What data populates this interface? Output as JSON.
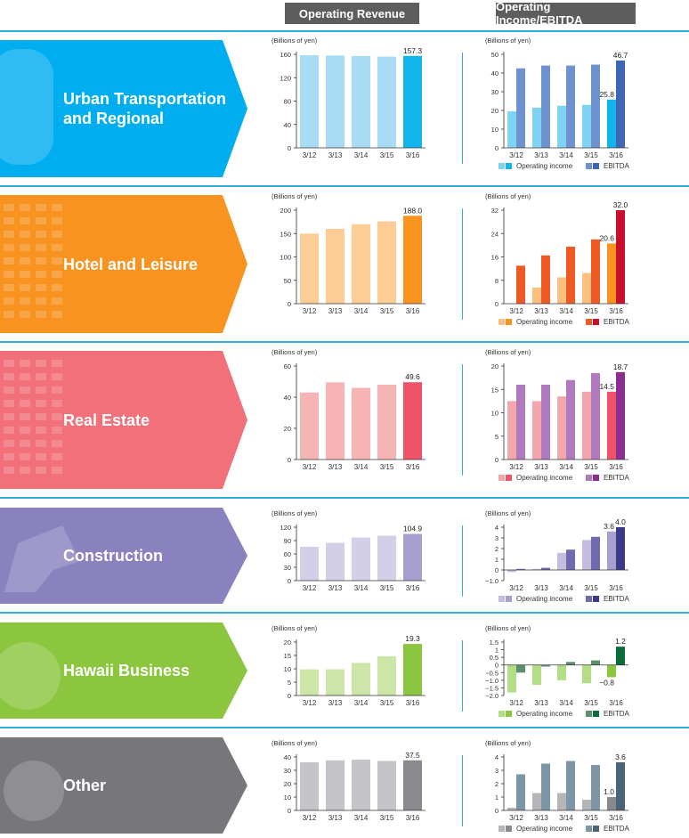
{
  "headers": {
    "revenue": "Operating Revenue",
    "income": "Operating Income/EBITDA"
  },
  "unit_label": "(Billions of yen)",
  "categories": [
    "3/12",
    "3/13",
    "3/14",
    "3/15",
    "3/16"
  ],
  "legend": {
    "income": "Operating income",
    "ebitda": "EBITDA"
  },
  "chart_data": [
    {
      "segment": "Urban Transportation and Regional",
      "label_lines": [
        "Urban Transportation",
        "and Regional"
      ],
      "colors": {
        "arrow": "#00aeef",
        "rev_light": "#a8dcf5",
        "rev_dark": "#12b4ec",
        "inc_light": "#7fd4f5",
        "inc_dark": "#12b4ec",
        "eb_light": "#6e92cd",
        "eb_dark": "#3e67b3"
      },
      "revenue": {
        "type": "bar",
        "title": "Operating Revenue",
        "ylabel": "(Billions of yen)",
        "values": [
          158.5,
          158.0,
          157.0,
          156.0,
          157.3
        ],
        "ylim": [
          0,
          160
        ],
        "yticks": [
          0,
          40,
          80,
          120,
          160
        ],
        "label": "157.3"
      },
      "income": {
        "type": "bar",
        "title": "Operating Income/EBITDA",
        "ylabel": "(Billions of yen)",
        "series": [
          {
            "name": "Operating income",
            "values": [
              19.5,
              21.5,
              22.5,
              23.0,
              25.8
            ]
          },
          {
            "name": "EBITDA",
            "values": [
              42.5,
              44.0,
              44.0,
              44.5,
              46.7
            ]
          }
        ],
        "ylim": [
          0,
          50
        ],
        "yticks": [
          0,
          10,
          20,
          30,
          40,
          50
        ],
        "labels": {
          "income": "25.8",
          "ebitda": "46.7"
        }
      }
    },
    {
      "segment": "Hotel and Leisure",
      "label_lines": [
        "Hotel and Leisure"
      ],
      "colors": {
        "arrow": "#f7931e",
        "rev_light": "#fdcd95",
        "rev_dark": "#f7931e",
        "inc_light": "#fbbf80",
        "inc_dark": "#f7931e",
        "eb_light": "#ef5a24",
        "eb_dark": "#c8102e"
      },
      "revenue": {
        "type": "bar",
        "title": "Operating Revenue",
        "ylabel": "(Billions of yen)",
        "values": [
          150,
          160,
          170,
          176,
          188.0
        ],
        "ylim": [
          0,
          200
        ],
        "yticks": [
          0,
          50,
          100,
          150,
          200
        ],
        "label": "188.0"
      },
      "income": {
        "type": "bar",
        "title": "Operating Income/EBITDA",
        "ylabel": "(Billions of yen)",
        "series": [
          {
            "name": "Operating income",
            "values": [
              0,
              5.5,
              9.0,
              10.5,
              20.6
            ]
          },
          {
            "name": "EBITDA",
            "values": [
              13.0,
              16.5,
              19.5,
              22.0,
              32.0
            ]
          }
        ],
        "ylim": [
          0,
          32
        ],
        "yticks": [
          0,
          8,
          16,
          24,
          32
        ],
        "labels": {
          "income": "20.6",
          "ebitda": "32.0"
        }
      }
    },
    {
      "segment": "Real Estate",
      "label_lines": [
        "Real Estate"
      ],
      "colors": {
        "arrow": "#f1707a",
        "rev_light": "#f7b4b4",
        "rev_dark": "#ef5368",
        "inc_light": "#f4a6ad",
        "inc_dark": "#ef5368",
        "eb_light": "#b07abf",
        "eb_dark": "#8a2f8d"
      },
      "revenue": {
        "type": "bar",
        "title": "Operating Revenue",
        "ylabel": "(Billions of yen)",
        "values": [
          43.0,
          49.5,
          46.0,
          48.0,
          49.6
        ],
        "ylim": [
          0,
          60
        ],
        "yticks": [
          0,
          20,
          40,
          60
        ],
        "label": "49.6"
      },
      "income": {
        "type": "bar",
        "title": "Operating Income/EBITDA",
        "ylabel": "(Billions of yen)",
        "series": [
          {
            "name": "Operating income",
            "values": [
              12.5,
              12.5,
              13.5,
              14.5,
              14.5
            ]
          },
          {
            "name": "EBITDA",
            "values": [
              16.0,
              16.0,
              17.0,
              18.5,
              18.7
            ]
          }
        ],
        "ylim": [
          0,
          20
        ],
        "yticks": [
          0,
          5,
          10,
          15,
          20
        ],
        "labels": {
          "income": "14.5",
          "ebitda": "18.7"
        }
      }
    },
    {
      "segment": "Construction",
      "label_lines": [
        "Construction"
      ],
      "colors": {
        "arrow": "#8a82bf",
        "rev_light": "#d3cfe8",
        "rev_dark": "#a79fd0",
        "inc_light": "#c3bde0",
        "inc_dark": "#a79fd0",
        "eb_light": "#6f69ad",
        "eb_dark": "#3b3a86"
      },
      "revenue": {
        "type": "bar",
        "title": "Operating Revenue",
        "ylabel": "(Billions of yen)",
        "values": [
          76,
          85,
          97,
          101,
          104.9
        ],
        "ylim": [
          0,
          120
        ],
        "yticks": [
          0,
          30,
          60,
          90,
          120
        ],
        "label": "104.9"
      },
      "income": {
        "type": "bar",
        "title": "Operating Income/EBITDA",
        "ylabel": "(Billions of yen)",
        "series": [
          {
            "name": "Operating income",
            "values": [
              -0.2,
              0.1,
              1.6,
              2.8,
              3.6
            ]
          },
          {
            "name": "EBITDA",
            "values": [
              0.1,
              0.2,
              1.9,
              3.1,
              4.0
            ]
          }
        ],
        "ylim": [
          -1,
          4
        ],
        "yticks": [
          -1,
          0,
          1,
          2,
          3,
          4
        ],
        "labels": {
          "income": "3.6",
          "ebitda": "4.0"
        }
      }
    },
    {
      "segment": "Hawaii Business",
      "label_lines": [
        "Hawaii Business"
      ],
      "colors": {
        "arrow": "#8cc63f",
        "rev_light": "#cbe6a6",
        "rev_dark": "#8cc63f",
        "inc_light": "#b3de85",
        "inc_dark": "#8cc63f",
        "eb_light": "#5d8f6e",
        "eb_dark": "#0b6b3a"
      },
      "revenue": {
        "type": "bar",
        "title": "Operating Revenue",
        "ylabel": "(Billions of yen)",
        "values": [
          9.8,
          9.8,
          12.2,
          14.7,
          19.3
        ],
        "ylim": [
          0,
          20
        ],
        "yticks": [
          0,
          5,
          10,
          15,
          20
        ],
        "label": "19.3"
      },
      "income": {
        "type": "bar",
        "title": "Operating Income/EBITDA",
        "ylabel": "(Billions of yen)",
        "series": [
          {
            "name": "Operating income",
            "values": [
              -1.8,
              -1.3,
              -1.0,
              -1.2,
              -0.8
            ]
          },
          {
            "name": "EBITDA",
            "values": [
              -0.5,
              -0.1,
              0.2,
              0.3,
              1.2
            ]
          }
        ],
        "ylim": [
          -2.0,
          1.5
        ],
        "yticks": [
          -2.0,
          -1.5,
          -1.0,
          -0.5,
          0,
          0.5,
          1.0,
          1.5
        ],
        "labels": {
          "income": "−0.8",
          "ebitda": "1.2"
        }
      }
    },
    {
      "segment": "Other",
      "label_lines": [
        "Other"
      ],
      "colors": {
        "arrow": "#77777b",
        "rev_light": "#c5c5c9",
        "rev_dark": "#8a8a8e",
        "inc_light": "#b6b6ba",
        "inc_dark": "#8a8a8e",
        "eb_light": "#7d96a6",
        "eb_dark": "#4b6478"
      },
      "revenue": {
        "type": "bar",
        "title": "Operating Revenue",
        "ylabel": "(Billions of yen)",
        "values": [
          36.0,
          37.5,
          38.0,
          37.0,
          37.5
        ],
        "ylim": [
          0,
          40
        ],
        "yticks": [
          0,
          10,
          20,
          30,
          40
        ],
        "label": "37.5"
      },
      "income": {
        "type": "bar",
        "title": "Operating Income/EBITDA",
        "ylabel": "(Billions of yen)",
        "series": [
          {
            "name": "Operating income",
            "values": [
              0.2,
              1.3,
              1.3,
              0.8,
              1.0
            ]
          },
          {
            "name": "EBITDA",
            "values": [
              2.7,
              3.5,
              3.7,
              3.4,
              3.6
            ]
          }
        ],
        "ylim": [
          0,
          4
        ],
        "yticks": [
          0,
          1,
          2,
          3,
          4
        ],
        "labels": {
          "income": "1.0",
          "ebitda": "3.6"
        }
      }
    }
  ]
}
